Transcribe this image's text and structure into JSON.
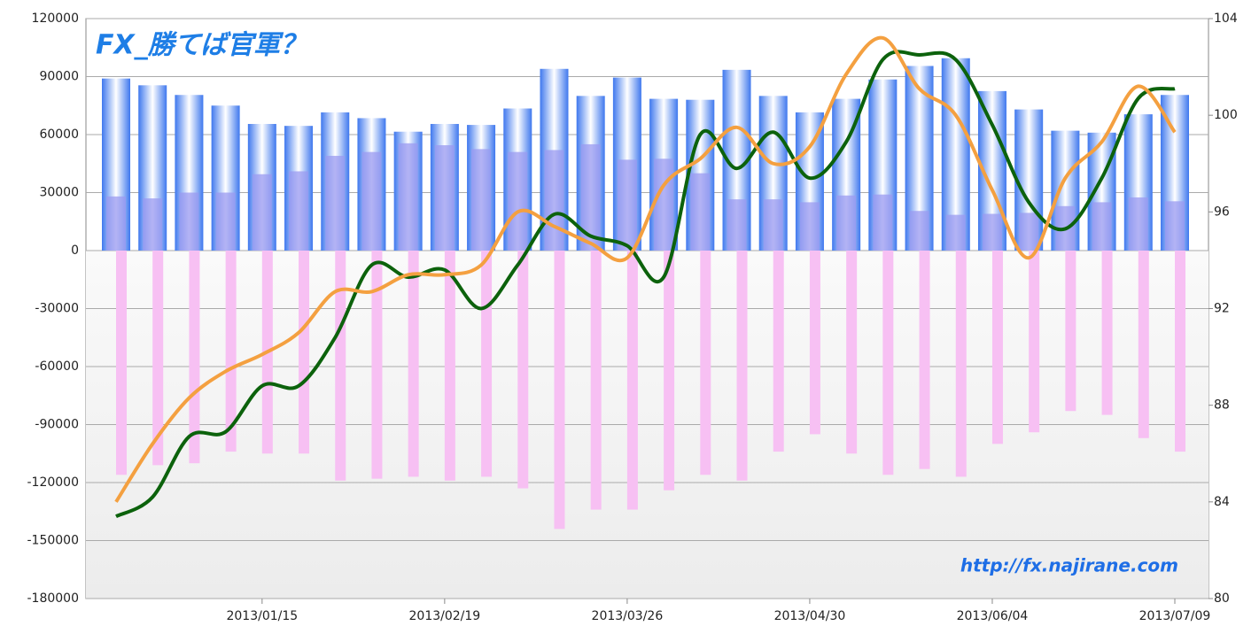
{
  "chart_data": {
    "type": "bar-line",
    "title": "FX_勝てば官軍？",
    "watermark": "http://fx.najirane.com",
    "categories": [
      null,
      null,
      null,
      null,
      "2013/01/15",
      null,
      null,
      null,
      null,
      "2013/02/19",
      null,
      null,
      null,
      null,
      "2013/03/26",
      null,
      null,
      null,
      null,
      "2013/04/30",
      null,
      null,
      null,
      null,
      "2013/06/04",
      null,
      null,
      null,
      null,
      "2013/07/09"
    ],
    "ylim": [
      -180000,
      120000
    ],
    "yticks": [
      -180000,
      -150000,
      -120000,
      -90000,
      -60000,
      -30000,
      0,
      30000,
      60000,
      90000,
      120000
    ],
    "y2lim": [
      80,
      104
    ],
    "y2ticks": [
      80,
      84,
      88,
      92,
      96,
      100,
      104
    ],
    "grid": true,
    "series": [
      {
        "type": "bar",
        "color": "#3f78ee",
        "values": [
          89000,
          85500,
          80500,
          75000,
          65500,
          64500,
          71500,
          68500,
          61500,
          65500,
          65000,
          73500,
          94000,
          80000,
          89500,
          78500,
          78000,
          93500,
          80000,
          71500,
          78500,
          88500,
          95500,
          99500,
          82500,
          73000,
          62000,
          61000,
          70500,
          80500
        ]
      },
      {
        "type": "bar",
        "color": "#9a9af0",
        "values": [
          28000,
          27000,
          30000,
          30000,
          39500,
          41000,
          49000,
          51000,
          55500,
          54500,
          52500,
          51000,
          52000,
          55000,
          47000,
          47500,
          40000,
          26500,
          26500,
          25000,
          28500,
          29000,
          20500,
          18500,
          19000,
          19500,
          23000,
          25000,
          27500,
          25500
        ]
      },
      {
        "type": "bar",
        "color": "#f7c0f3",
        "values": [
          -116000,
          -111000,
          -110000,
          -104000,
          -105000,
          -105000,
          -119000,
          -118000,
          -117000,
          -119000,
          -117000,
          -123000,
          -144000,
          -134000,
          -134000,
          -124000,
          -116000,
          -119000,
          -104000,
          -95000,
          -105000,
          -116000,
          -113000,
          -117000,
          -100000,
          -94000,
          -83000,
          -85000,
          -97000,
          -104000
        ]
      },
      {
        "type": "line",
        "axis": "y2",
        "color": "#0c620c",
        "values": [
          83.4,
          84.2,
          86.7,
          86.9,
          88.8,
          88.8,
          90.8,
          93.8,
          93.3,
          93.6,
          92.0,
          93.8,
          95.9,
          95.0,
          94.6,
          93.3,
          99.2,
          97.8,
          99.3,
          97.4,
          98.9,
          102.3,
          102.5,
          102.3,
          99.6,
          96.4,
          95.3,
          97.4,
          100.7,
          101.1
        ]
      },
      {
        "type": "line",
        "axis": "y2",
        "color": "#f4a040",
        "values": [
          84.0,
          86.4,
          88.3,
          89.4,
          90.1,
          91.0,
          92.7,
          92.7,
          93.4,
          93.4,
          93.8,
          96.0,
          95.4,
          94.7,
          94.1,
          97.1,
          98.2,
          99.5,
          98.0,
          98.7,
          101.7,
          103.2,
          101.1,
          100.0,
          96.9,
          94.1,
          97.4,
          98.9,
          101.2,
          99.3
        ]
      }
    ]
  }
}
